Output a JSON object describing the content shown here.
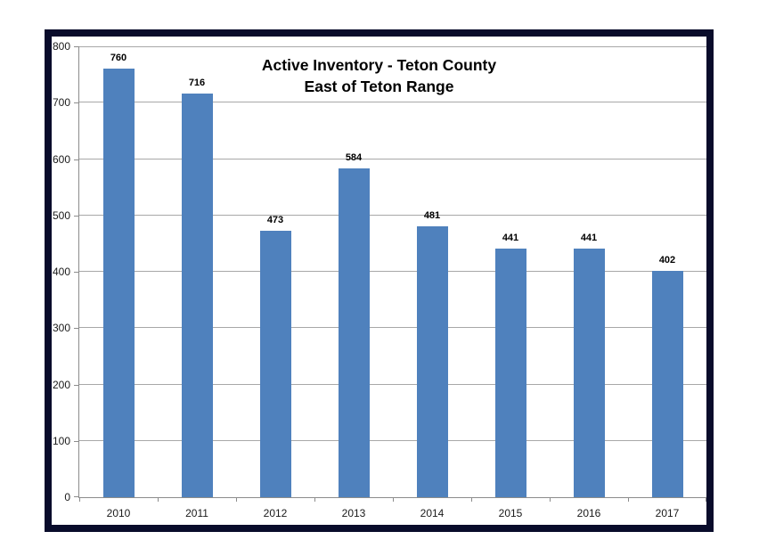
{
  "chart_data": {
    "type": "bar",
    "title": "Active Inventory - Teton County East of Teton Range",
    "title_lines": [
      "Active Inventory - Teton County",
      "East of Teton Range"
    ],
    "categories": [
      "2010",
      "2011",
      "2012",
      "2013",
      "2014",
      "2015",
      "2016",
      "2017"
    ],
    "values": [
      760,
      716,
      473,
      584,
      481,
      441,
      441,
      402
    ],
    "xlabel": "",
    "ylabel": "",
    "ylim": [
      0,
      800
    ],
    "yticks": [
      0,
      100,
      200,
      300,
      400,
      500,
      600,
      700,
      800
    ],
    "grid": true,
    "legend_position": "none",
    "data_labels": true,
    "colors": {
      "bar": "#4F81BD",
      "gridline": "#A8A8A8",
      "axis": "#8C8C8C",
      "frame_border": "#090C2B",
      "text": "#000000",
      "background": "#FFFFFF"
    }
  }
}
